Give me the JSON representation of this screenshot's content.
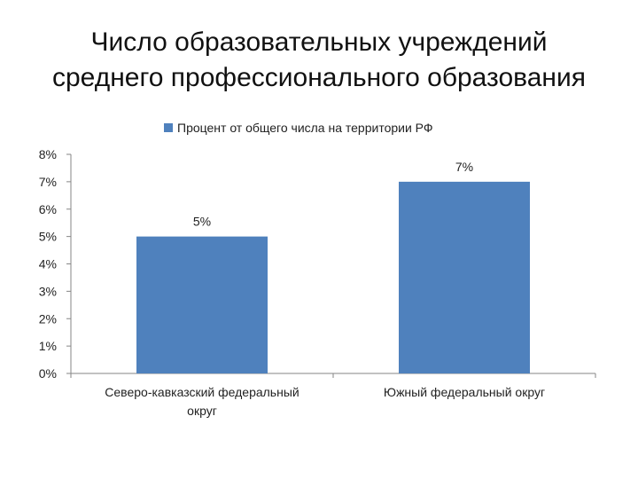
{
  "chart_data": {
    "type": "bar",
    "title_lines": [
      "Число образовательных учреждений",
      "среднего профессионального образования"
    ],
    "categories": [
      [
        "Северо-кавказский федеральный",
        "округ"
      ],
      [
        "Южный федеральный округ"
      ]
    ],
    "series": [
      {
        "name": "Процент от общего числа на территории РФ",
        "values": [
          5,
          7
        ],
        "value_labels": [
          "5%",
          "7%"
        ],
        "color": "#4f81bd"
      }
    ],
    "y_ticks": [
      "0%",
      "1%",
      "2%",
      "3%",
      "4%",
      "5%",
      "6%",
      "7%",
      "8%"
    ],
    "ylim": [
      0,
      8
    ],
    "grid": false,
    "legend_position": "top"
  }
}
